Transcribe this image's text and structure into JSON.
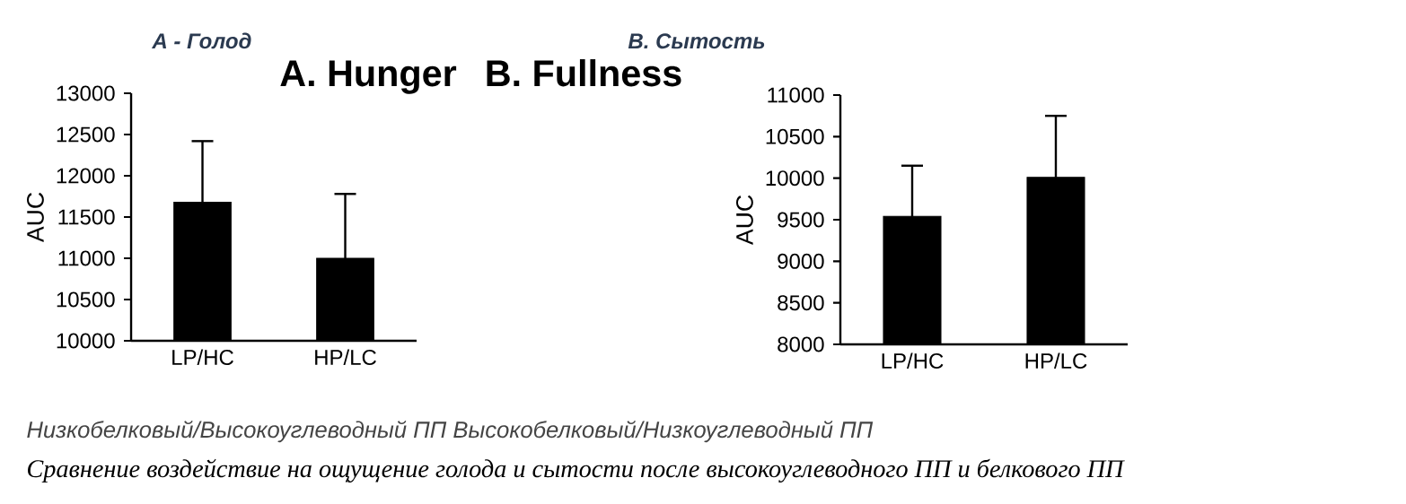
{
  "chart_data": [
    {
      "type": "bar",
      "title": "A. Hunger",
      "subtitle": "A - Голод",
      "ylabel": "AUC",
      "categories": [
        "LP/HC",
        "HP/LC"
      ],
      "values": [
        11680,
        11000
      ],
      "errors": [
        740,
        780
      ],
      "color": "#000000",
      "ylim": [
        10000,
        13000
      ],
      "yticks": [
        10000,
        10500,
        11000,
        11500,
        12000,
        12500,
        13000
      ],
      "annotations": [
        "Низкобелковый/Высокоуглеводный ПП    Высокобелковый/Низкоуглеводный ПП",
        "Сравнение воздействие на ощущение голода и сытости после высокоуглеводного ПП и белкового ПП"
      ]
    },
    {
      "type": "bar",
      "title": "B. Fullness",
      "subtitle": "B. Сытость",
      "ylabel": "AUC",
      "categories": [
        "LP/HC",
        "HP/LC"
      ],
      "values": [
        9540,
        10010
      ],
      "errors": [
        610,
        740
      ],
      "color": "#000000",
      "ylim": [
        8000,
        11000
      ],
      "yticks": [
        8000,
        8500,
        9000,
        9500,
        10000,
        10500,
        11000
      ]
    }
  ]
}
